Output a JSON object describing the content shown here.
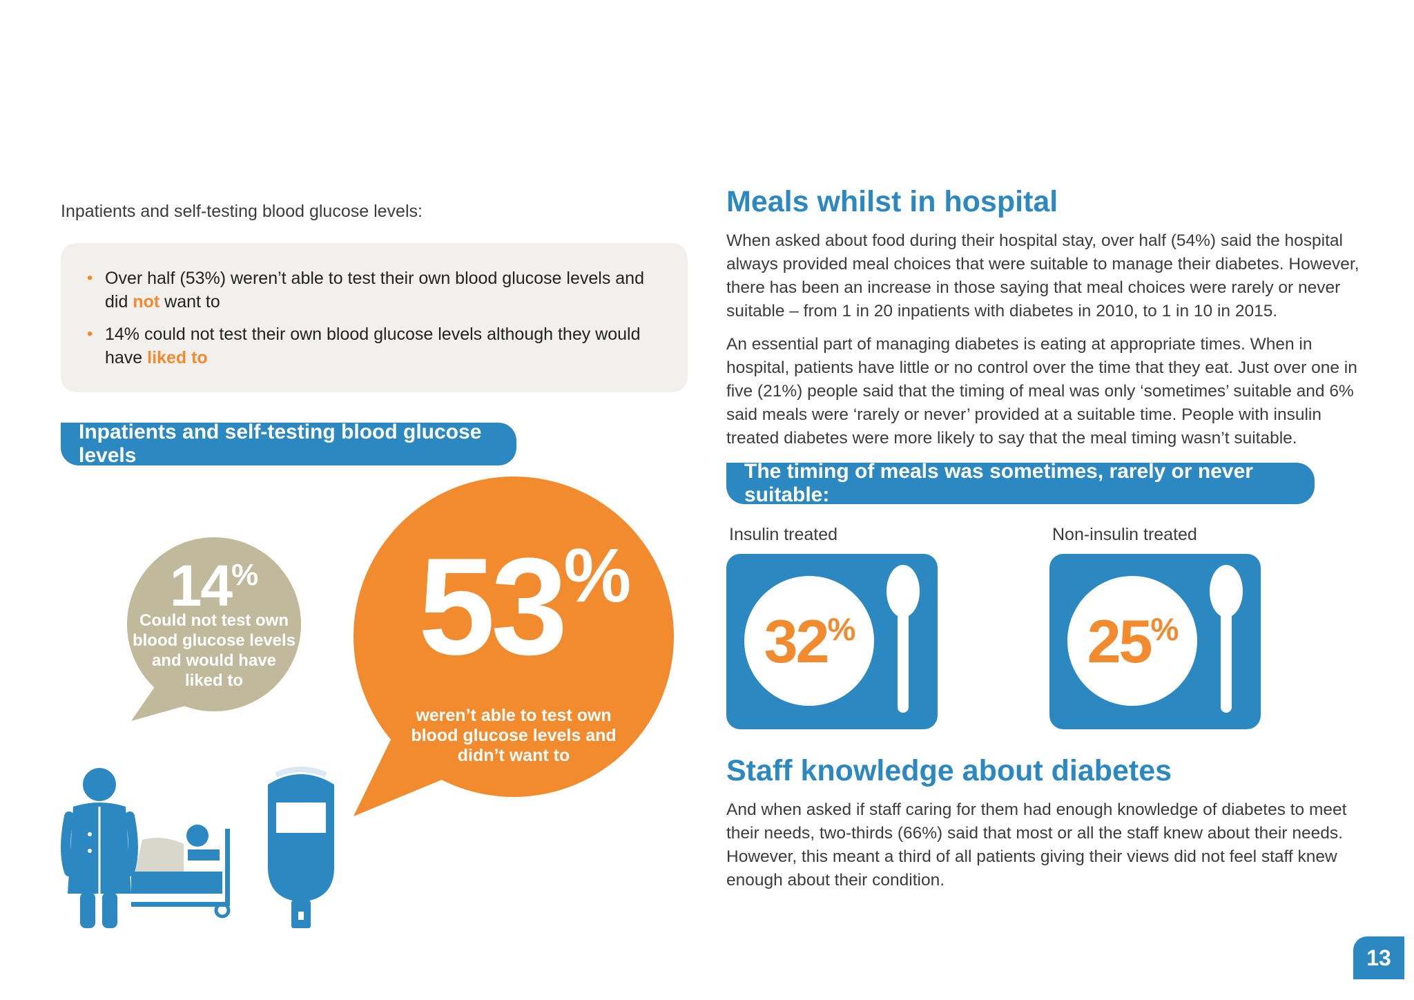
{
  "left": {
    "intro": "Inpatients and self-testing blood glucose levels:",
    "bullets": {
      "b1_line1": "Over half (53%) weren’t able to test their own blood glucose levels and",
      "b1_pre": "did ",
      "b1_hl": "not",
      "b1_post": " want to",
      "b2_line1": "14% could not test their own blood glucose levels although they would",
      "b2_pre": "have ",
      "b2_hl": "liked to"
    },
    "banner": "Inpatients and self-testing blood glucose levels",
    "bubble_small": {
      "value": "14",
      "unit": "%",
      "lines": [
        "Could not test own",
        "blood glucose levels",
        "and would have",
        "liked to"
      ]
    },
    "bubble_large": {
      "value": "53",
      "unit": "%",
      "lines": [
        "weren’t able to test own",
        "blood glucose levels and",
        "didn’t want to"
      ]
    }
  },
  "right": {
    "meals_heading": "Meals whilst in hospital",
    "meals_p1": "When asked about food during their hospital stay, over half (54%) said the hospital always provided meal choices that were suitable to manage their diabetes. However, there has been an increase in those saying that meal choices were rarely or never suitable – from 1 in 20 inpatients with diabetes in 2010, to 1 in 10 in 2015.",
    "meals_p2": "An essential part of managing diabetes is eating at appropriate times. When in hospital, patients have little or no control over the time that they eat. Just over one in five (21%) people said that the timing of meal was only ‘sometimes’ suitable and 6% said meals were ‘rarely or never’ provided at a suitable time. People with insulin treated diabetes were more likely to say that the meal timing wasn’t suitable.",
    "timing_banner": "The timing of meals was sometimes, rarely or never suitable:",
    "plates": [
      {
        "label": "Insulin treated",
        "value": "32",
        "unit": "%"
      },
      {
        "label": "Non-insulin treated",
        "value": "25",
        "unit": "%"
      }
    ],
    "staff_heading": "Staff knowledge about diabetes",
    "staff_p": "And when asked if staff caring for them had enough knowledge of diabetes to meet their needs, two-thirds (66%) said that most or all the staff knew about their needs. However, this meant a third of all patients giving their views did not feel staff knew enough about their condition."
  },
  "page_number": "13",
  "colors": {
    "blue": "#2c88c0",
    "orange": "#f28a2e",
    "beige": "#c1b99c",
    "box_bg": "#f1f0ec"
  }
}
